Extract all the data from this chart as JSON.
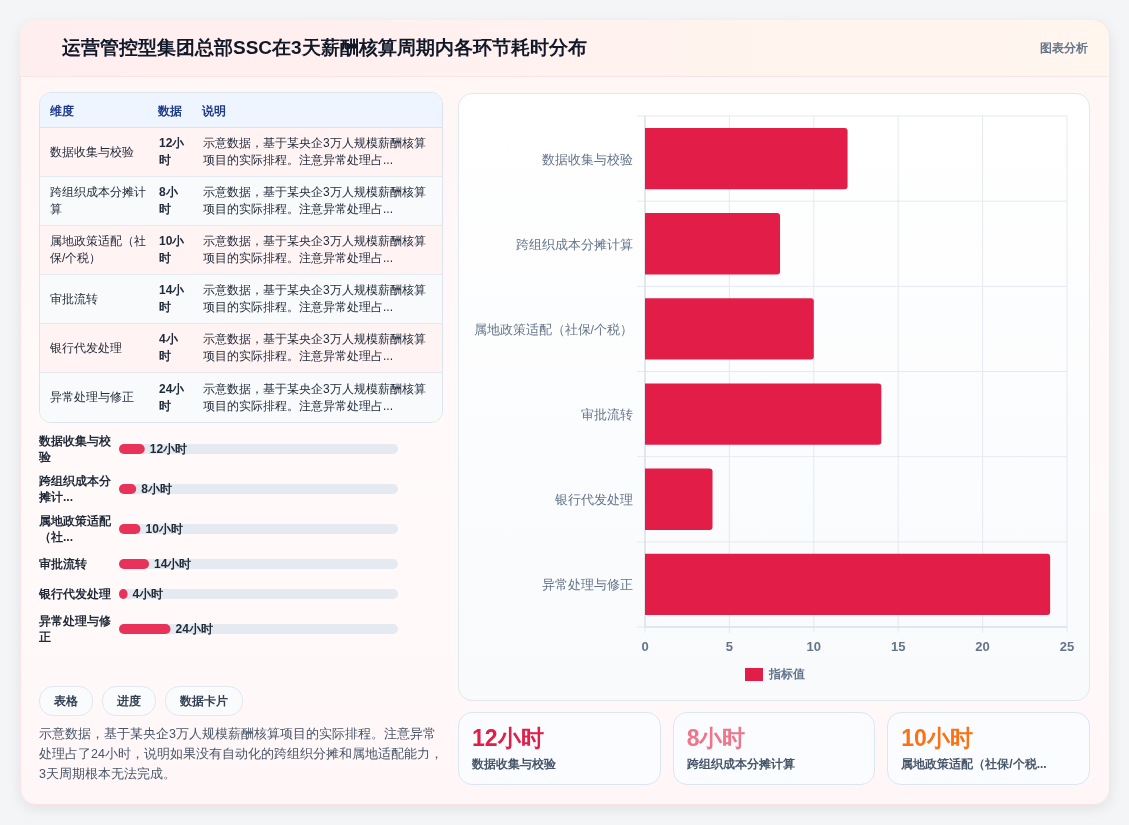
{
  "chart_data": [
    {
      "type": "other",
      "title": "运营管控型集团总部SSC在3天薪酬核算周期内各环节耗时分布",
      "annotations": [
        "图表分析"
      ]
    },
    {
      "type": "other",
      "categories": [
        "数据收集与校验",
        "跨组织成本分摊计算",
        "属地政策适配（社保/个税）",
        "审批流转",
        "银行代发处理",
        "异常处理与修正"
      ],
      "value_labels": [
        "12小时",
        "8小时",
        "10小时",
        "14小时",
        "4小时",
        "24小时"
      ],
      "annotations": [
        "维度",
        "数据",
        "说明",
        "示意数据，基于某央企3万人规模薪酬核算项目的实际排程。注意异常处理占...",
        "示意数据，基于某央企3万人规模薪酬核算项目的实际排程。注意异常处理占...",
        "示意数据，基于某央企3万人规模薪酬核算项目的实际排程。注意异常处理占...",
        "示意数据，基于某央企3万人规模薪酬核算项目的实际排程。注意异常处理占...",
        "示意数据，基于某央企3万人规模薪酬核算项目的实际排程。注意异常处理占...",
        "示意数据，基于某央企3万人规模薪酬核算项目的实际排程。注意异常处理占..."
      ]
    },
    {
      "type": "bar",
      "orientation": "horizontal",
      "categories": [
        "数据收集与校验",
        "跨组织成本分摊计...",
        "属地政策适配（社...",
        "审批流转",
        "银行代发处理",
        "异常处理与修正"
      ],
      "values": [
        12,
        8,
        10,
        14,
        4,
        24
      ],
      "value_labels": [
        "12小时",
        "8小时",
        "10小时",
        "14小时",
        "4小时",
        "24小时"
      ],
      "xlim": [
        0,
        130
      ],
      "color": "#e8325a"
    },
    {
      "type": "other",
      "annotations": [
        "表格",
        "进度",
        "数据卡片",
        "示意数据，基于某央企3万人规模薪酬核算项目的实际排程。注意异常处理占了24小时，说明如果没有自动化的跨组织分摊和属地适配能力，3天周期根本无法完成。"
      ]
    },
    {
      "type": "bar",
      "orientation": "horizontal",
      "categories": [
        "数据收集与校验",
        "跨组织成本分摊计算",
        "属地政策适配（社保/个税）",
        "审批流转",
        "银行代发处理",
        "异常处理与修正"
      ],
      "series": [
        {
          "name": "指标值",
          "color": "#e11d48",
          "values": [
            12,
            8,
            10,
            14,
            4,
            24
          ]
        }
      ],
      "xlim": [
        0,
        25
      ],
      "xticks": [
        0,
        5,
        10,
        15,
        20,
        25
      ],
      "grid": true,
      "legend": "bottom"
    },
    {
      "type": "other",
      "categories": [
        "数据收集与校验",
        "跨组织成本分摊计算",
        "属地政策适配（社保/个税..."
      ],
      "value_labels": [
        "12小时",
        "8小时",
        "10小时"
      ],
      "colors": [
        "#e11d48",
        "#f07588",
        "#f97316"
      ]
    }
  ]
}
